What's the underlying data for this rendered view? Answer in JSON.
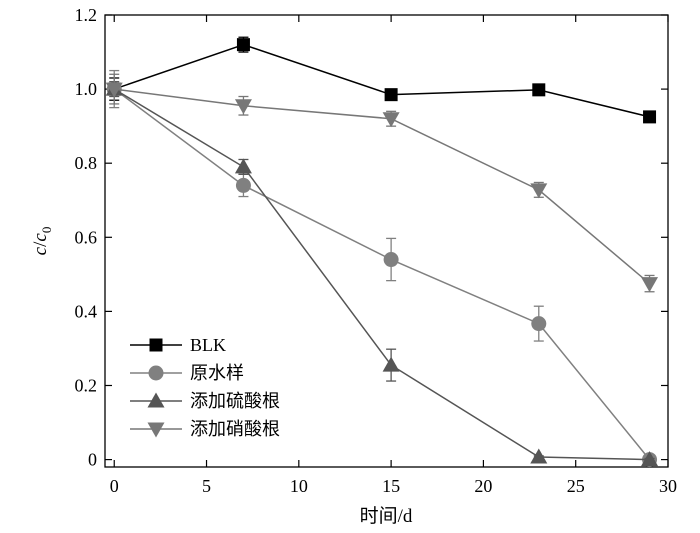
{
  "chart_data": {
    "type": "line",
    "xlabel": "时间/d",
    "ylabel_main": "c",
    "ylabel_sep": "/",
    "ylabel_var": "c",
    "ylabel_sub": "0",
    "xlim": [
      -0.5,
      30
    ],
    "ylim": [
      -0.02,
      1.2
    ],
    "x_ticks": [
      0,
      5,
      10,
      15,
      20,
      25,
      30
    ],
    "y_ticks": [
      0,
      0.2,
      0.4,
      0.6,
      0.8,
      1.0,
      1.2
    ],
    "x_tick_labels": [
      "0",
      "5",
      "10",
      "15",
      "20",
      "25",
      "30"
    ],
    "y_tick_labels": [
      "0",
      "0.2",
      "0.4",
      "0.6",
      "0.8",
      "1.0",
      "1.2"
    ],
    "legend_position": "lower-left",
    "grid": false,
    "series": [
      {
        "name": "BLK",
        "marker": "square",
        "color": "#000000",
        "x": [
          0,
          7,
          15,
          23,
          29
        ],
        "y": [
          1.0,
          1.12,
          0.985,
          0.998,
          0.925
        ],
        "err": [
          0.03,
          0.02,
          0.01,
          0.01,
          0.01
        ]
      },
      {
        "name": "原水样",
        "marker": "circle",
        "color": "#808080",
        "x": [
          0,
          7,
          15,
          23,
          29
        ],
        "y": [
          1.0,
          0.74,
          0.54,
          0.367,
          0.0
        ],
        "err": [
          0.05,
          0.03,
          0.057,
          0.047,
          0.005
        ]
      },
      {
        "name": "添加硫酸根",
        "marker": "triangle-up",
        "color": "#555555",
        "x": [
          0,
          7,
          15,
          23,
          29
        ],
        "y": [
          1.0,
          0.79,
          0.255,
          0.007,
          0.0
        ],
        "err": [
          0.02,
          0.02,
          0.043,
          0.003,
          0.003
        ]
      },
      {
        "name": "添加硝酸根",
        "marker": "triangle-down",
        "color": "#777777",
        "x": [
          0,
          7,
          15,
          23,
          29
        ],
        "y": [
          1.0,
          0.955,
          0.92,
          0.728,
          0.475
        ],
        "err": [
          0.04,
          0.025,
          0.02,
          0.02,
          0.022
        ]
      }
    ]
  }
}
